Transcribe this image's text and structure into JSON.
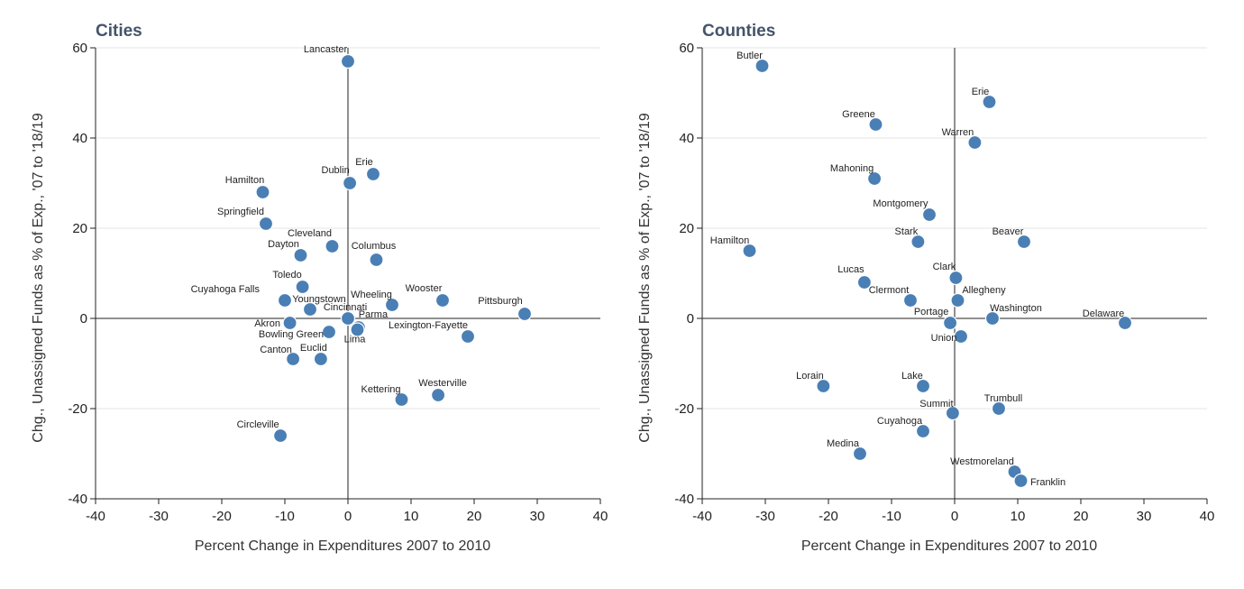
{
  "chart_data": [
    {
      "type": "scatter",
      "title": "Cities",
      "xlabel": "Percent Change in Expenditures 2007 to 2010",
      "ylabel": "Chg., Unassigned Funds as % of Exp., '07 to '18/19",
      "xlim": [
        -40,
        40
      ],
      "ylim": [
        -40,
        60
      ],
      "xticks": [
        -40,
        -30,
        -20,
        -10,
        0,
        10,
        20,
        30,
        40
      ],
      "yticks": [
        -40,
        -20,
        0,
        20,
        40,
        60
      ],
      "grid": "horizontal",
      "color": "#4a7fb5",
      "points": [
        {
          "name": "Lancaster",
          "x": 0,
          "y": 57
        },
        {
          "name": "Erie",
          "x": 4,
          "y": 32
        },
        {
          "name": "Dublin",
          "x": 0.3,
          "y": 30
        },
        {
          "name": "Hamilton",
          "x": -13.5,
          "y": 28
        },
        {
          "name": "Springfield",
          "x": -13,
          "y": 21
        },
        {
          "name": "Cleveland",
          "x": -2.5,
          "y": 16
        },
        {
          "name": "Dayton",
          "x": -7.5,
          "y": 14
        },
        {
          "name": "Columbus",
          "x": 4.5,
          "y": 13
        },
        {
          "name": "Toledo",
          "x": -7.2,
          "y": 7
        },
        {
          "name": "Cuyahoga Falls",
          "x": -10,
          "y": 4
        },
        {
          "name": "Youngstown",
          "x": -6,
          "y": 2
        },
        {
          "name": "Wheeling",
          "x": 7,
          "y": 3
        },
        {
          "name": "Wooster",
          "x": 15,
          "y": 4
        },
        {
          "name": "Pittsburgh",
          "x": 28,
          "y": 1
        },
        {
          "name": "Cincinnati",
          "x": 0,
          "y": 0
        },
        {
          "name": "Parma",
          "x": 1.7,
          "y": -2
        },
        {
          "name": "Akron",
          "x": -9.2,
          "y": -1
        },
        {
          "name": "Bowling Green",
          "x": -3,
          "y": -3
        },
        {
          "name": "Lima",
          "x": 1.5,
          "y": -2.5
        },
        {
          "name": "Lexington-Fayette",
          "x": 19,
          "y": -4
        },
        {
          "name": "Canton",
          "x": -8.7,
          "y": -9
        },
        {
          "name": "Euclid",
          "x": -4.3,
          "y": -9
        },
        {
          "name": "Kettering",
          "x": 8.5,
          "y": -18
        },
        {
          "name": "Westerville",
          "x": 14.3,
          "y": -17
        },
        {
          "name": "Circleville",
          "x": -10.7,
          "y": -26
        }
      ]
    },
    {
      "type": "scatter",
      "title": "Counties",
      "xlabel": "Percent Change in Expenditures 2007 to 2010",
      "ylabel": "Chg., Unassigned Funds as % of Exp., '07 to '18/19",
      "xlim": [
        -40,
        40
      ],
      "ylim": [
        -40,
        60
      ],
      "xticks": [
        -40,
        -30,
        -20,
        -10,
        0,
        10,
        20,
        30,
        40
      ],
      "yticks": [
        -40,
        -20,
        0,
        20,
        40,
        60
      ],
      "grid": "horizontal",
      "color": "#4a7fb5",
      "points": [
        {
          "name": "Butler",
          "x": -30.5,
          "y": 56
        },
        {
          "name": "Erie",
          "x": 5.5,
          "y": 48
        },
        {
          "name": "Greene",
          "x": -12.5,
          "y": 43
        },
        {
          "name": "Warren",
          "x": 3.2,
          "y": 39
        },
        {
          "name": "Mahoning",
          "x": -12.7,
          "y": 31
        },
        {
          "name": "Montgomery",
          "x": -4,
          "y": 23
        },
        {
          "name": "Stark",
          "x": -5.8,
          "y": 17
        },
        {
          "name": "Beaver",
          "x": 11,
          "y": 17
        },
        {
          "name": "Hamilton",
          "x": -32.5,
          "y": 15
        },
        {
          "name": "Clark",
          "x": 0.2,
          "y": 9
        },
        {
          "name": "Lucas",
          "x": -14.3,
          "y": 8
        },
        {
          "name": "Clermont",
          "x": -7,
          "y": 4
        },
        {
          "name": "Allegheny",
          "x": 0.5,
          "y": 4
        },
        {
          "name": "Washington",
          "x": 6,
          "y": 0
        },
        {
          "name": "Portage",
          "x": -0.7,
          "y": -1
        },
        {
          "name": "Delaware",
          "x": 27,
          "y": -1
        },
        {
          "name": "Union",
          "x": 1,
          "y": -4
        },
        {
          "name": "Lorain",
          "x": -20.8,
          "y": -15
        },
        {
          "name": "Lake",
          "x": -5,
          "y": -15
        },
        {
          "name": "Trumbull",
          "x": 7,
          "y": -20
        },
        {
          "name": "Summit",
          "x": -0.3,
          "y": -21
        },
        {
          "name": "Cuyahoga",
          "x": -5,
          "y": -25
        },
        {
          "name": "Medina",
          "x": -15,
          "y": -30
        },
        {
          "name": "Westmoreland",
          "x": 9.5,
          "y": -34
        },
        {
          "name": "Franklin",
          "x": 10.5,
          "y": -36
        }
      ]
    }
  ]
}
